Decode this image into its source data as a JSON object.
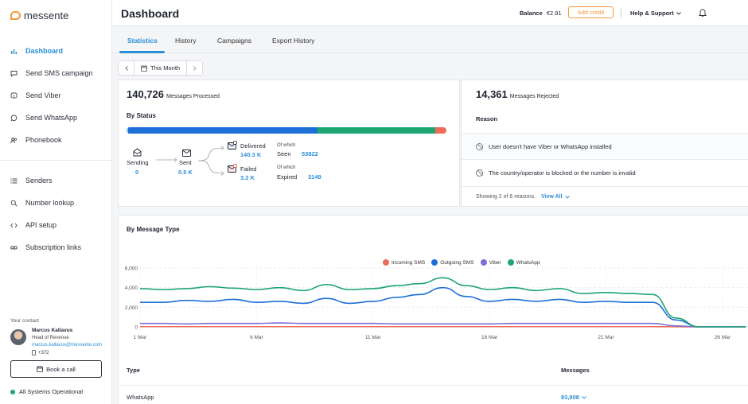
{
  "brand": {
    "name": "messente"
  },
  "sidebar": {
    "items": [
      {
        "label": "Dashboard",
        "icon": "bar-chart-icon",
        "active": true
      },
      {
        "label": "Send SMS campaign",
        "icon": "chat-bubble-icon"
      },
      {
        "label": "Send Viber",
        "icon": "viber-icon"
      },
      {
        "label": "Send WhatsApp",
        "icon": "whatsapp-icon"
      },
      {
        "label": "Phonebook",
        "icon": "people-icon"
      }
    ],
    "items2": [
      {
        "label": "Senders",
        "icon": "list-icon"
      },
      {
        "label": "Number lookup",
        "icon": "search-icon"
      },
      {
        "label": "API setup",
        "icon": "code-icon"
      },
      {
        "label": "Subscription links",
        "icon": "link-icon"
      }
    ],
    "contact": {
      "label": "Your contact",
      "name": "Marcus Kallavus",
      "role": "Head of Revenue",
      "email": "marcus.kallavus@messente.com",
      "phone": "+372"
    },
    "book_call": "Book a call",
    "system_status": "All Systems Operational"
  },
  "header": {
    "title": "Dashboard",
    "balance_label": "Balance",
    "balance_value": "€2.91",
    "add_credit": "Add credit",
    "help": "Help & Support"
  },
  "tabs": [
    "Statistics",
    "History",
    "Campaigns",
    "Export History"
  ],
  "date_range": "This Month",
  "processed": {
    "count": "140,726",
    "label": "Messages Processed",
    "by_status": "By Status",
    "bar": [
      {
        "share": 0.006,
        "color": "#7fc4e8"
      },
      {
        "share": 0.59,
        "color": "#1f6fd8"
      },
      {
        "share": 0.37,
        "color": "#1ea672"
      },
      {
        "share": 0.034,
        "color": "#ee6b5a"
      }
    ],
    "sending": {
      "label": "Sending",
      "value": "0"
    },
    "sent": {
      "label": "Sent",
      "value": "0.5 K"
    },
    "delivered": {
      "label": "Delivered",
      "value": "140.3 K"
    },
    "failed": {
      "label": "Failed",
      "value": "3.2 K"
    },
    "of_which": "Of which",
    "seen": {
      "label": "Seen",
      "value": "53822"
    },
    "expired": {
      "label": "Expired",
      "value": "3149"
    }
  },
  "rejected": {
    "count": "14,361",
    "label": "Messages Rejected",
    "reason_header": "Reason",
    "reasons": [
      "User doesn't have Viber or WhatsApp installed",
      "The country/operator is blocked or the number is invalid"
    ],
    "showing": "Showing 2 of 6 reasons.",
    "view_all": "View All"
  },
  "by_type": {
    "title": "By Message Type",
    "legend": [
      {
        "name": "Incoming SMS",
        "color": "#ee6b5a"
      },
      {
        "name": "Outgoing SMS",
        "color": "#1f6fd8"
      },
      {
        "name": "Viber",
        "color": "#7b6fd8"
      },
      {
        "name": "WhatsApp",
        "color": "#1ea672"
      }
    ],
    "table_header_type": "Type",
    "table_header_messages": "Messages",
    "rows": [
      {
        "type": "WhatsApp",
        "messages": "83,808"
      }
    ]
  },
  "chart_data": {
    "type": "line",
    "x": [
      "1 Mar",
      "2 Mar",
      "3 Mar",
      "4 Mar",
      "5 Mar",
      "6 Mar",
      "7 Mar",
      "8 Mar",
      "9 Mar",
      "10 Mar",
      "11 Mar",
      "12 Mar",
      "13 Mar",
      "14 Mar",
      "15 Mar",
      "16 Mar",
      "17 Mar",
      "18 Mar",
      "19 Mar",
      "20 Mar",
      "21 Mar",
      "22 Mar",
      "23 Mar",
      "24 Mar",
      "25 Mar",
      "26 Mar",
      "27 Mar"
    ],
    "x_tick_labels": [
      "1 Mar",
      "6 Mar",
      "11 Mar",
      "16 Mar",
      "21 Mar",
      "26 Mar"
    ],
    "y_tick_labels": [
      "6,000",
      "4,000",
      "2,000",
      "0"
    ],
    "ylim": [
      0,
      6000
    ],
    "grid": true,
    "legend_position": "top",
    "series": [
      {
        "name": "Incoming SMS",
        "values": [
          20,
          20,
          20,
          20,
          20,
          20,
          20,
          20,
          20,
          20,
          20,
          20,
          20,
          20,
          20,
          20,
          20,
          20,
          20,
          20,
          20,
          20,
          20,
          10,
          0,
          0,
          0
        ]
      },
      {
        "name": "Outgoing SMS",
        "values": [
          2500,
          2500,
          2700,
          2600,
          2800,
          2500,
          2600,
          2400,
          2900,
          2400,
          2600,
          3000,
          3300,
          4000,
          3100,
          2600,
          2800,
          2600,
          2800,
          2500,
          2600,
          2500,
          2500,
          700,
          0,
          0,
          0
        ]
      },
      {
        "name": "Viber",
        "values": [
          350,
          350,
          300,
          350,
          350,
          350,
          400,
          350,
          350,
          350,
          350,
          300,
          300,
          300,
          300,
          300,
          350,
          350,
          350,
          350,
          350,
          350,
          350,
          100,
          0,
          0,
          0
        ]
      },
      {
        "name": "WhatsApp",
        "values": [
          3900,
          3800,
          3900,
          4100,
          3950,
          3800,
          4000,
          3700,
          4300,
          3800,
          3900,
          4200,
          4400,
          5000,
          4200,
          3800,
          4000,
          3700,
          3900,
          3400,
          3500,
          3400,
          3300,
          900,
          0,
          0,
          0
        ]
      }
    ]
  }
}
